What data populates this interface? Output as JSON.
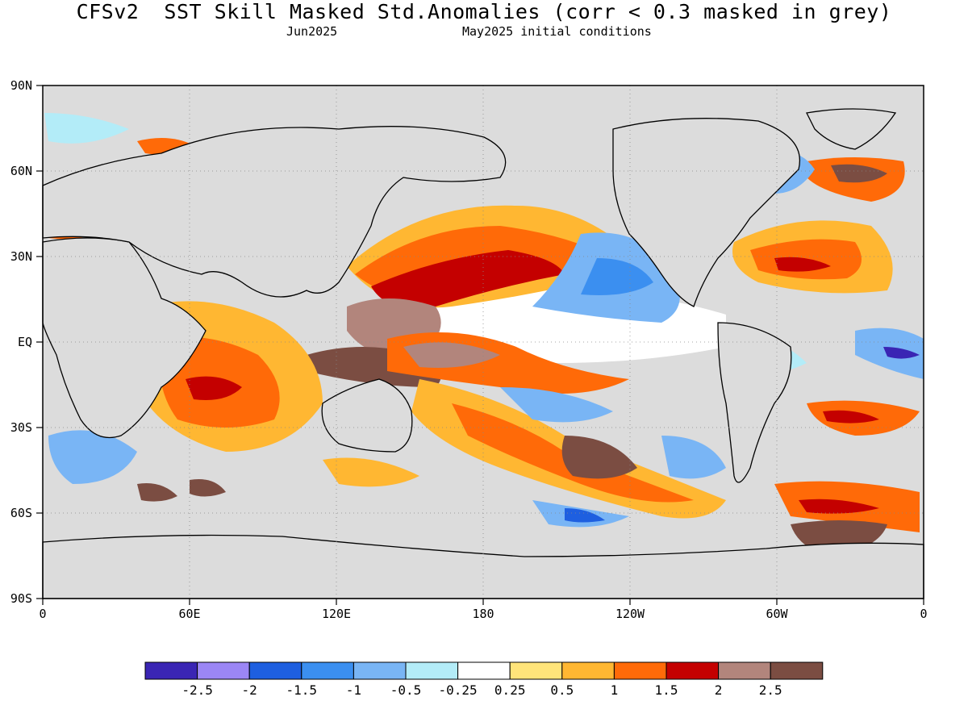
{
  "header": {
    "title": "CFSv2  SST Skill Masked Std.Anomalies (corr < 0.3 masked in grey)",
    "valid_month": "Jun2025",
    "initial_conditions": "May2025 initial conditions"
  },
  "map": {
    "lat_labels": [
      "90N",
      "60N",
      "30N",
      "EQ",
      "30S",
      "60S",
      "90S"
    ],
    "lon_labels": [
      "0",
      "60E",
      "120E",
      "180",
      "120W",
      "60W",
      "0"
    ],
    "mask_color": "#dcdcdc",
    "grid": "dotted"
  },
  "colorbar": {
    "colors": [
      "#3a25b4",
      "#9b86f5",
      "#1e5fe0",
      "#3b8ff0",
      "#79b5f5",
      "#b3ecf8",
      "#ffffff",
      "#ffe47a",
      "#ffb732",
      "#ff6a08",
      "#c40000",
      "#b2857c",
      "#7b4d42"
    ],
    "labels": [
      "-2.5",
      "-2",
      "-1.5",
      "-1",
      "-0.5",
      "-0.25",
      "0.25",
      "0.5",
      "1",
      "1.5",
      "2",
      "2.5"
    ]
  }
}
